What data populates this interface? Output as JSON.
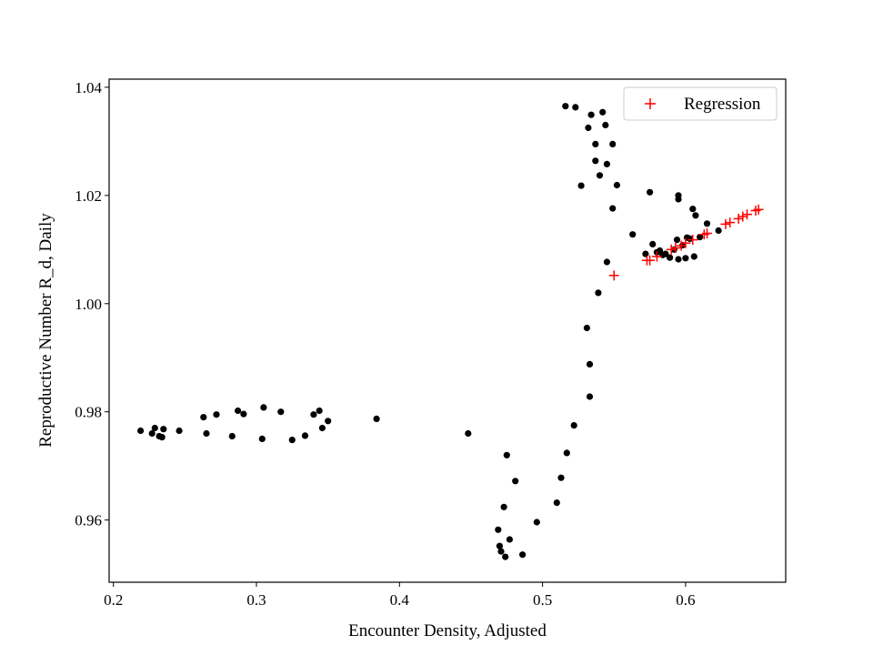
{
  "chart_data": {
    "type": "scatter",
    "title": "",
    "xlabel": "Encounter Density, Adjusted",
    "ylabel": "Reproductive Number R_d, Daily",
    "xlim": [
      0.197,
      0.67
    ],
    "ylim": [
      0.9485,
      1.0415
    ],
    "xticks": [
      0.2,
      0.3,
      0.4,
      0.5,
      0.6
    ],
    "xtick_labels": [
      "0.2",
      "0.3",
      "0.4",
      "0.5",
      "0.6"
    ],
    "yticks": [
      0.96,
      0.98,
      1.0,
      1.02,
      1.04
    ],
    "ytick_labels": [
      "0.96",
      "0.98",
      "1.00",
      "1.02",
      "1.04"
    ],
    "grid": false,
    "legend": {
      "position": "top-right",
      "entries": [
        {
          "label": "Regression",
          "marker": "+",
          "color": "#ff0000"
        }
      ]
    },
    "series": [
      {
        "marker": "dot",
        "color": "#000000",
        "points": [
          [
            0.219,
            0.9765
          ],
          [
            0.227,
            0.976
          ],
          [
            0.229,
            0.977
          ],
          [
            0.232,
            0.9755
          ],
          [
            0.234,
            0.9753
          ],
          [
            0.235,
            0.9768
          ],
          [
            0.246,
            0.9765
          ],
          [
            0.263,
            0.979
          ],
          [
            0.265,
            0.976
          ],
          [
            0.272,
            0.9795
          ],
          [
            0.283,
            0.9755
          ],
          [
            0.287,
            0.9802
          ],
          [
            0.291,
            0.9796
          ],
          [
            0.304,
            0.975
          ],
          [
            0.305,
            0.9808
          ],
          [
            0.317,
            0.98
          ],
          [
            0.325,
            0.9748
          ],
          [
            0.334,
            0.9756
          ],
          [
            0.34,
            0.9795
          ],
          [
            0.344,
            0.9802
          ],
          [
            0.346,
            0.977
          ],
          [
            0.35,
            0.9783
          ],
          [
            0.384,
            0.9787
          ],
          [
            0.448,
            0.976
          ],
          [
            0.469,
            0.9582
          ],
          [
            0.47,
            0.9552
          ],
          [
            0.471,
            0.9542
          ],
          [
            0.473,
            0.9624
          ],
          [
            0.474,
            0.9532
          ],
          [
            0.475,
            0.972
          ],
          [
            0.477,
            0.9564
          ],
          [
            0.481,
            0.9672
          ],
          [
            0.486,
            0.9536
          ],
          [
            0.496,
            0.9596
          ],
          [
            0.51,
            0.9632
          ],
          [
            0.513,
            0.9678
          ],
          [
            0.517,
            0.9724
          ],
          [
            0.522,
            0.9775
          ],
          [
            0.531,
            0.9955
          ],
          [
            0.533,
            0.9888
          ],
          [
            0.533,
            0.9828
          ],
          [
            0.539,
            1.002
          ],
          [
            0.545,
            1.0077
          ],
          [
            0.516,
            1.0365
          ],
          [
            0.523,
            1.0363
          ],
          [
            0.527,
            1.0218
          ],
          [
            0.532,
            1.0325
          ],
          [
            0.534,
            1.0349
          ],
          [
            0.537,
            1.0295
          ],
          [
            0.537,
            1.0264
          ],
          [
            0.54,
            1.0237
          ],
          [
            0.542,
            1.0354
          ],
          [
            0.544,
            1.033
          ],
          [
            0.545,
            1.0258
          ],
          [
            0.549,
            1.0295
          ],
          [
            0.549,
            1.0176
          ],
          [
            0.552,
            1.0219
          ],
          [
            0.563,
            1.0128
          ],
          [
            0.572,
            1.0092
          ],
          [
            0.575,
            1.0206
          ],
          [
            0.577,
            1.011
          ],
          [
            0.58,
            1.0095
          ],
          [
            0.582,
            1.0098
          ],
          [
            0.584,
            1.009
          ],
          [
            0.586,
            1.0092
          ],
          [
            0.589,
            1.0085
          ],
          [
            0.592,
            1.01
          ],
          [
            0.594,
            1.0118
          ],
          [
            0.595,
            1.02
          ],
          [
            0.595,
            1.0193
          ],
          [
            0.595,
            1.0082
          ],
          [
            0.598,
            1.0108
          ],
          [
            0.6,
            1.0084
          ],
          [
            0.601,
            1.0122
          ],
          [
            0.603,
            1.012
          ],
          [
            0.605,
            1.0175
          ],
          [
            0.606,
            1.0087
          ],
          [
            0.607,
            1.0163
          ],
          [
            0.61,
            1.0123
          ],
          [
            0.615,
            1.0148
          ],
          [
            0.623,
            1.0135
          ]
        ]
      },
      {
        "name": "Regression",
        "marker": "plus",
        "color": "#ff0000",
        "points": [
          [
            0.55,
            1.0052
          ],
          [
            0.573,
            1.008
          ],
          [
            0.575,
            1.008
          ],
          [
            0.58,
            1.0087
          ],
          [
            0.59,
            1.01
          ],
          [
            0.593,
            1.0103
          ],
          [
            0.597,
            1.0107
          ],
          [
            0.6,
            1.0112
          ],
          [
            0.605,
            1.0118
          ],
          [
            0.613,
            1.0128
          ],
          [
            0.615,
            1.013
          ],
          [
            0.628,
            1.0147
          ],
          [
            0.631,
            1.015
          ],
          [
            0.637,
            1.0157
          ],
          [
            0.64,
            1.0161
          ],
          [
            0.643,
            1.0165
          ],
          [
            0.649,
            1.0172
          ],
          [
            0.651,
            1.0174
          ]
        ]
      }
    ]
  }
}
